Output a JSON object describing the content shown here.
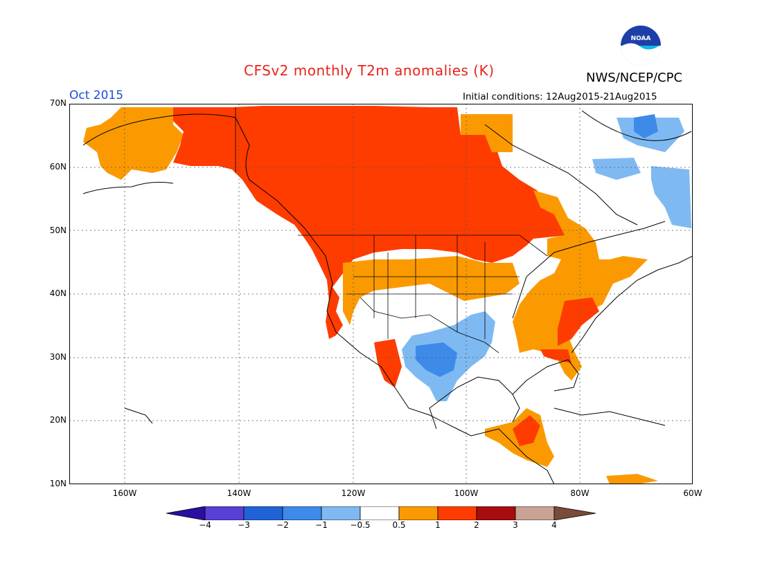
{
  "title": "CFSv2 monthly T2m anomalies (K)",
  "valid_month": "Oct 2015",
  "initial_conditions": "Initial conditions: 12Aug2015-21Aug2015",
  "organization": "NWS/NCEP/CPC",
  "logo_text": "NOAA",
  "lat_labels": [
    "70N",
    "60N",
    "50N",
    "40N",
    "30N",
    "20N",
    "10N"
  ],
  "lon_labels": [
    "160W",
    "140W",
    "120W",
    "100W",
    "80W",
    "60W"
  ],
  "colorbar": {
    "labels": [
      "-4",
      "-3",
      "-2",
      "-1",
      "-0.5",
      "0.5",
      "1",
      "2",
      "3",
      "4"
    ],
    "colors": [
      "#2a0fa0",
      "#5a3fd6",
      "#1f63d6",
      "#3d8ae8",
      "#7fb9f2",
      "#ffffff",
      "#fb9a00",
      "#ff3c00",
      "#a80d0d",
      "#c9a393",
      "#7a4a3a"
    ]
  },
  "regions": [
    {
      "name": "alaska",
      "value": "0.5 to 1"
    },
    {
      "name": "canada",
      "value": "1 to 2"
    },
    {
      "name": "us-southwest",
      "value": "-1 to -0.5"
    },
    {
      "name": "labrador",
      "value": "-1 to -0.5"
    },
    {
      "name": "us-southeast",
      "value": "1 to 2"
    }
  ]
}
